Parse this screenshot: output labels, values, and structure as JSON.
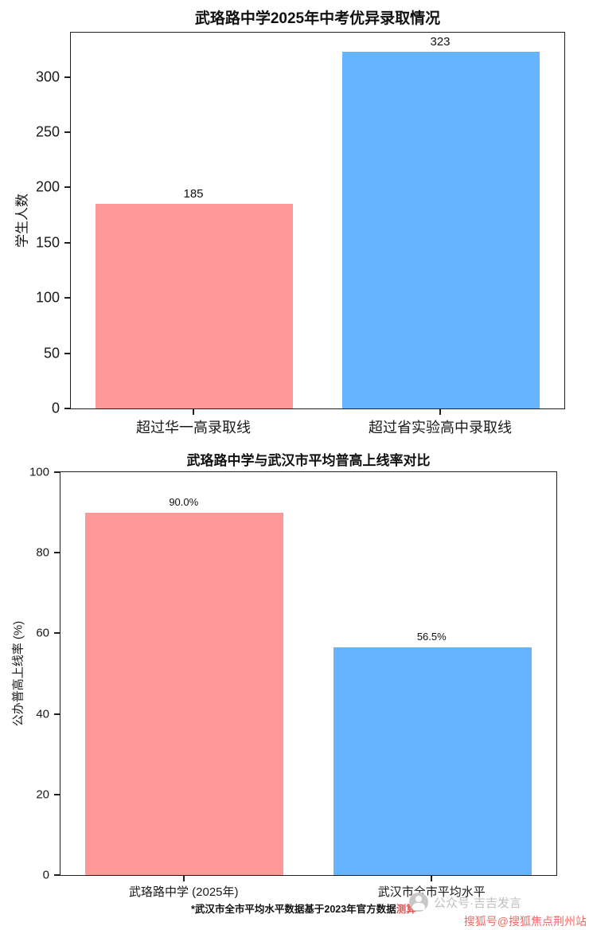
{
  "figure": {
    "background": "#ffffff",
    "spine_color": "#1f1f1f"
  },
  "chart_data": [
    {
      "type": "bar",
      "title": "武珞路中学2025年中考优异录取情况",
      "ylabel": "学生人数",
      "xlabel": "",
      "categories": [
        "超过华一高录取线",
        "超过省实验高中录取线"
      ],
      "values": [
        185,
        323
      ],
      "value_labels": [
        "185",
        "323"
      ],
      "bar_colors": [
        "#ff9999",
        "#66b3ff"
      ],
      "ylim": [
        0,
        340
      ],
      "yticks": [
        0,
        50,
        100,
        150,
        200,
        250,
        300
      ],
      "grid": false,
      "legend": "none"
    },
    {
      "type": "bar",
      "title": "武珞路中学与武汉市平均普高上线率对比",
      "ylabel": "公办普高上线率 (%)",
      "xlabel": "",
      "categories": [
        "武珞路中学 (2025年)",
        "武汉市全市平均水平"
      ],
      "values": [
        90.0,
        56.5
      ],
      "value_labels": [
        "90.0%",
        "56.5%"
      ],
      "bar_colors": [
        "#ff9999",
        "#66b3ff"
      ],
      "ylim": [
        0,
        100
      ],
      "yticks": [
        0,
        20,
        40,
        60,
        80,
        100
      ],
      "grid": false,
      "legend": "none"
    }
  ],
  "footnote": {
    "text": "*武汉市全市平均水平数据基于2023年官方数据",
    "highlight": "测算"
  },
  "watermarks": {
    "account_label": "公众号·吉吉发言",
    "sohu_label": "搜狐号@搜狐焦点荆州站",
    "sohu_color": "#ee6b66"
  }
}
